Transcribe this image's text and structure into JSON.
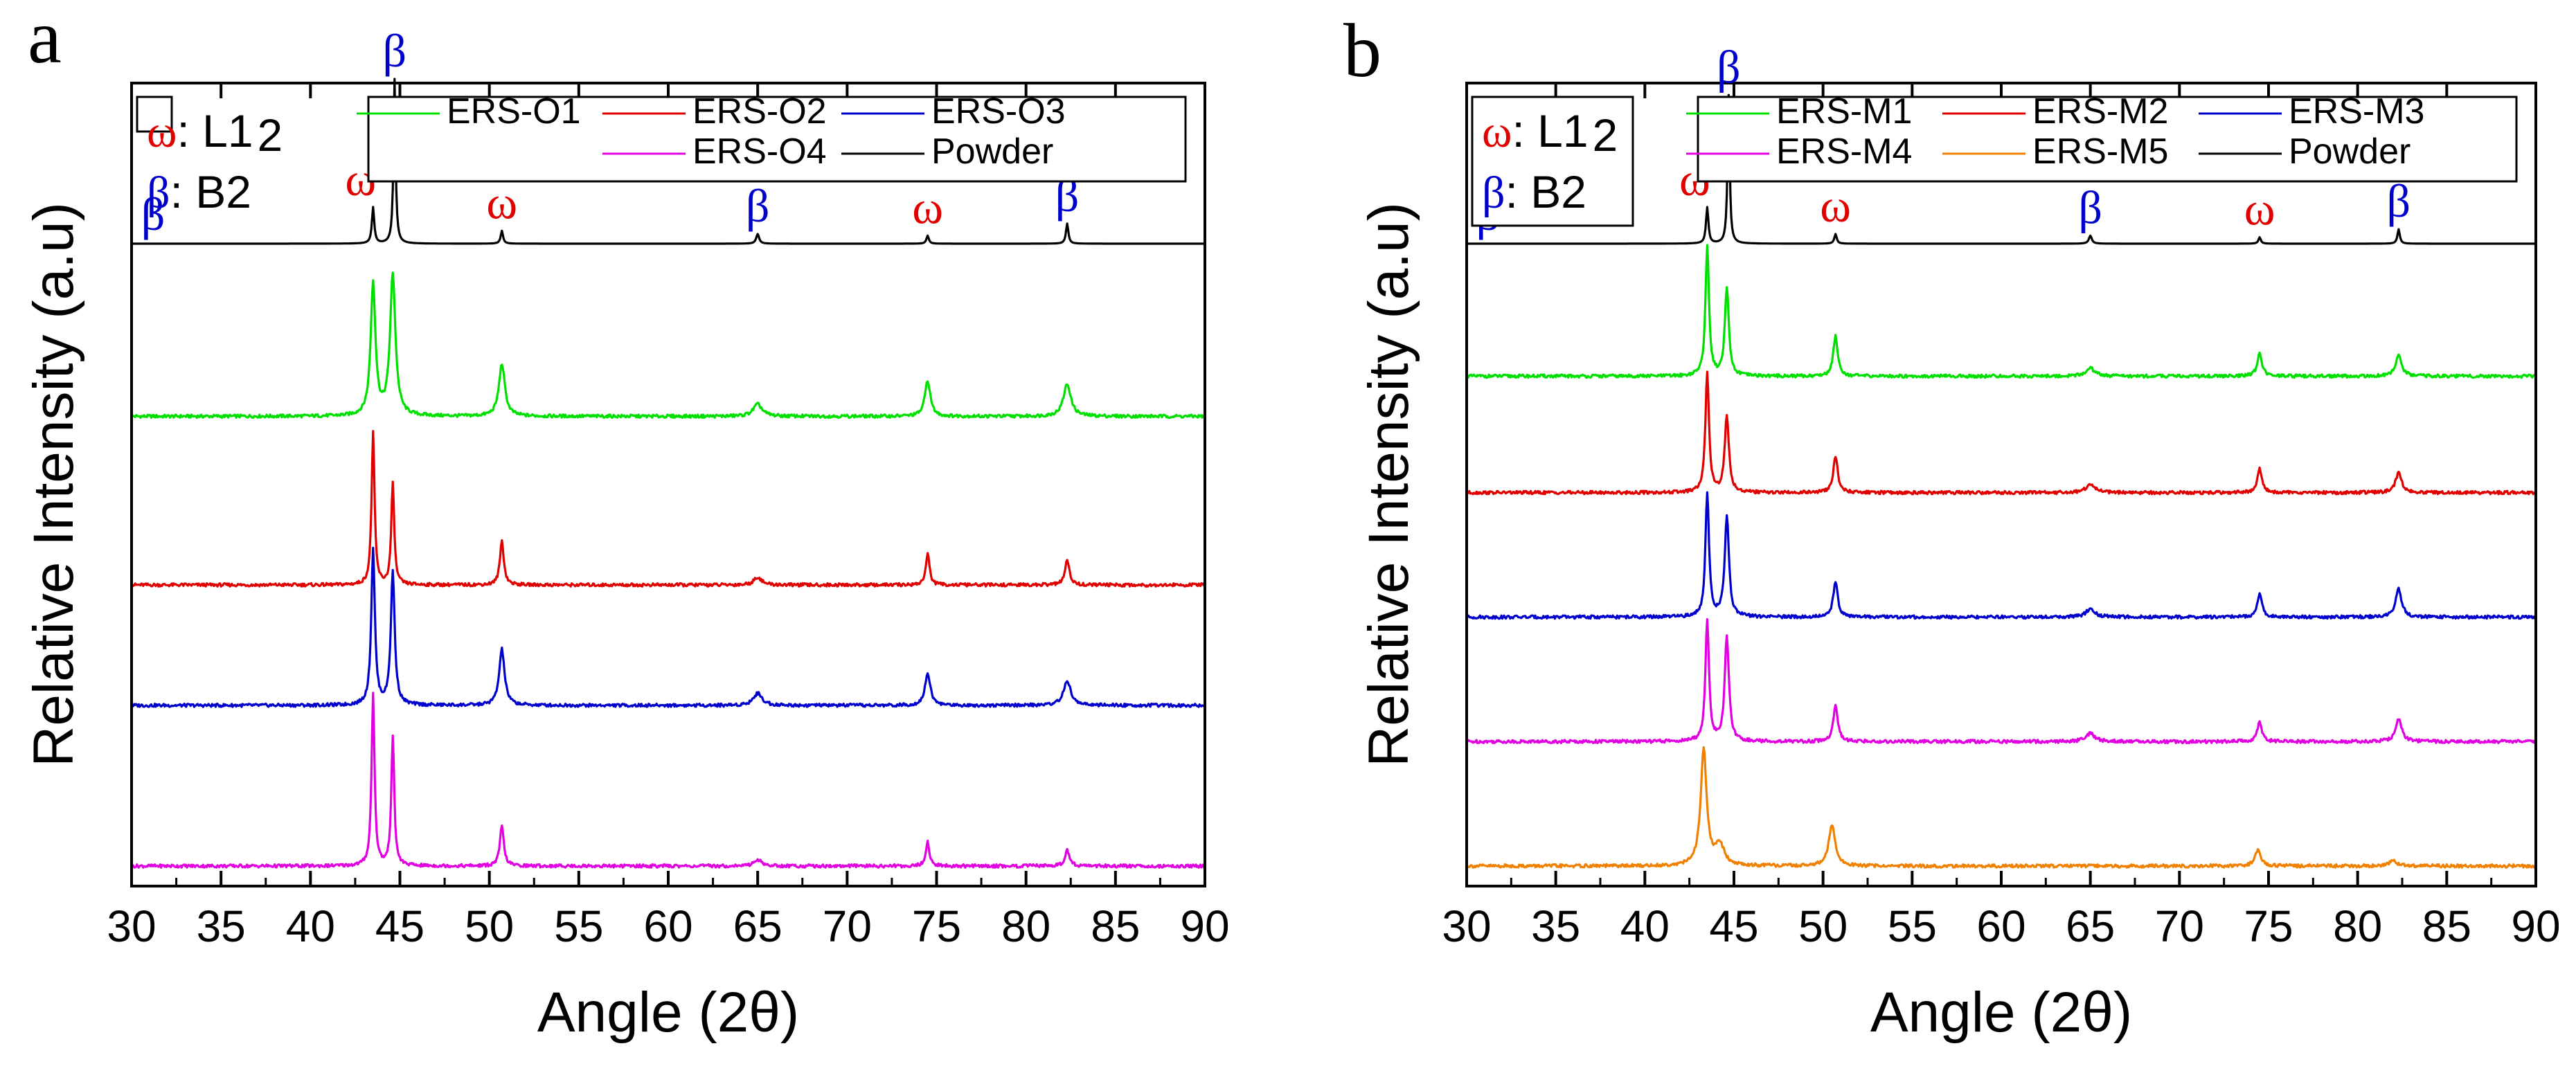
{
  "chart_data": [
    {
      "type": "line",
      "panel_label": "a",
      "xlabel": "Angle (2θ)",
      "ylabel": "Relative Intensity (a.u)",
      "xlim": [
        30,
        90
      ],
      "xticks": [
        "30",
        "35",
        "40",
        "45",
        "50",
        "55",
        "60",
        "65",
        "70",
        "75",
        "80",
        "85",
        "90"
      ],
      "y_ticks_shown": false,
      "grid": false,
      "phase_key": [
        {
          "symbol": "ω",
          "text": ": L1",
          "sub": "2",
          "color": "#e00000"
        },
        {
          "symbol": "β",
          "text": ": B2",
          "color": "#0000cc"
        }
      ],
      "legend": {
        "placement": "top-right",
        "entries": [
          {
            "name": "ERS-O1",
            "color": "#00e000"
          },
          {
            "name": "ERS-O2",
            "color": "#e00000"
          },
          {
            "name": "ERS-O3",
            "color": "#0000cc"
          },
          {
            "name": "ERS-O4",
            "color": "#e000e0"
          },
          {
            "name": "Powder",
            "color": "#000000"
          }
        ]
      },
      "peak_annotations": [
        {
          "x": 31.2,
          "label": "β",
          "color": "#0000cc"
        },
        {
          "x": 43.5,
          "label": "ω",
          "color": "#e00000"
        },
        {
          "x": 44.7,
          "label": "β",
          "color": "#0000cc"
        },
        {
          "x": 50.7,
          "label": "ω",
          "color": "#e00000"
        },
        {
          "x": 65.0,
          "label": "β",
          "color": "#0000cc"
        },
        {
          "x": 74.5,
          "label": "ω",
          "color": "#e00000"
        },
        {
          "x": 82.3,
          "label": "β",
          "color": "#0000cc"
        }
      ],
      "series": [
        {
          "name": "Powder",
          "color": "#000000",
          "offset": 0.8,
          "peaks": [
            {
              "x": 43.5,
              "h": 0.045,
              "w": 0.08
            },
            {
              "x": 44.7,
              "h": 0.205,
              "w": 0.07
            },
            {
              "x": 50.7,
              "h": 0.016,
              "w": 0.08
            },
            {
              "x": 65.0,
              "h": 0.012,
              "w": 0.1
            },
            {
              "x": 74.5,
              "h": 0.01,
              "w": 0.08
            },
            {
              "x": 82.3,
              "h": 0.025,
              "w": 0.08
            }
          ]
        },
        {
          "name": "ERS-O1",
          "color": "#00e000",
          "offset": 0.585,
          "peaks": [
            {
              "x": 43.5,
              "h": 0.165,
              "w": 0.16
            },
            {
              "x": 44.6,
              "h": 0.175,
              "w": 0.18
            },
            {
              "x": 50.7,
              "h": 0.065,
              "w": 0.2
            },
            {
              "x": 65.0,
              "h": 0.015,
              "w": 0.3
            },
            {
              "x": 74.5,
              "h": 0.045,
              "w": 0.18
            },
            {
              "x": 82.3,
              "h": 0.04,
              "w": 0.25
            }
          ]
        },
        {
          "name": "ERS-O2",
          "color": "#e00000",
          "offset": 0.375,
          "peaks": [
            {
              "x": 43.5,
              "h": 0.19,
              "w": 0.1
            },
            {
              "x": 44.6,
              "h": 0.125,
              "w": 0.1
            },
            {
              "x": 50.7,
              "h": 0.055,
              "w": 0.13
            },
            {
              "x": 65.0,
              "h": 0.01,
              "w": 0.25
            },
            {
              "x": 74.5,
              "h": 0.04,
              "w": 0.12
            },
            {
              "x": 82.3,
              "h": 0.03,
              "w": 0.15
            }
          ]
        },
        {
          "name": "ERS-O3",
          "color": "#0000cc",
          "offset": 0.225,
          "peaks": [
            {
              "x": 43.5,
              "h": 0.195,
              "w": 0.12
            },
            {
              "x": 44.6,
              "h": 0.165,
              "w": 0.13
            },
            {
              "x": 50.7,
              "h": 0.07,
              "w": 0.18
            },
            {
              "x": 65.0,
              "h": 0.015,
              "w": 0.3
            },
            {
              "x": 74.5,
              "h": 0.04,
              "w": 0.18
            },
            {
              "x": 82.3,
              "h": 0.03,
              "w": 0.25
            }
          ]
        },
        {
          "name": "ERS-O4",
          "color": "#e000e0",
          "offset": 0.025,
          "peaks": [
            {
              "x": 43.5,
              "h": 0.215,
              "w": 0.1
            },
            {
              "x": 44.6,
              "h": 0.16,
              "w": 0.1
            },
            {
              "x": 50.7,
              "h": 0.05,
              "w": 0.13
            },
            {
              "x": 65.0,
              "h": 0.008,
              "w": 0.25
            },
            {
              "x": 74.5,
              "h": 0.03,
              "w": 0.12
            },
            {
              "x": 82.3,
              "h": 0.02,
              "w": 0.15
            }
          ]
        }
      ]
    },
    {
      "type": "line",
      "panel_label": "b",
      "xlabel": "Angle (2θ)",
      "ylabel": "Relative Intensity (a.u)",
      "xlim": [
        30,
        90
      ],
      "xticks": [
        "30",
        "35",
        "40",
        "45",
        "50",
        "55",
        "60",
        "65",
        "70",
        "75",
        "80",
        "85",
        "90"
      ],
      "y_ticks_shown": false,
      "grid": false,
      "phase_key": [
        {
          "symbol": "ω",
          "text": ": L1",
          "sub": "2",
          "color": "#e00000"
        },
        {
          "symbol": "β",
          "text": ": B2",
          "color": "#0000cc"
        }
      ],
      "legend": {
        "placement": "top-right",
        "entries": [
          {
            "name": "ERS-M1",
            "color": "#00e000"
          },
          {
            "name": "ERS-M2",
            "color": "#e00000"
          },
          {
            "name": "ERS-M3",
            "color": "#0000cc"
          },
          {
            "name": "ERS-M4",
            "color": "#e000e0"
          },
          {
            "name": "ERS-M5",
            "color": "#f08000"
          },
          {
            "name": "Powder",
            "color": "#000000"
          }
        ]
      },
      "peak_annotations": [
        {
          "x": 31.2,
          "label": "β",
          "color": "#0000cc"
        },
        {
          "x": 43.5,
          "label": "ω",
          "color": "#e00000"
        },
        {
          "x": 44.7,
          "label": "β",
          "color": "#0000cc"
        },
        {
          "x": 50.7,
          "label": "ω",
          "color": "#e00000"
        },
        {
          "x": 65.0,
          "label": "β",
          "color": "#0000cc"
        },
        {
          "x": 74.5,
          "label": "ω",
          "color": "#e00000"
        },
        {
          "x": 82.3,
          "label": "β",
          "color": "#0000cc"
        }
      ],
      "series": [
        {
          "name": "Powder",
          "color": "#000000",
          "offset": 0.8,
          "peaks": [
            {
              "x": 43.5,
              "h": 0.045,
              "w": 0.08
            },
            {
              "x": 44.7,
              "h": 0.185,
              "w": 0.07
            },
            {
              "x": 50.7,
              "h": 0.012,
              "w": 0.08
            },
            {
              "x": 65.0,
              "h": 0.01,
              "w": 0.1
            },
            {
              "x": 74.5,
              "h": 0.008,
              "w": 0.08
            },
            {
              "x": 82.3,
              "h": 0.018,
              "w": 0.08
            }
          ]
        },
        {
          "name": "ERS-M1",
          "color": "#00e000",
          "offset": 0.635,
          "peaks": [
            {
              "x": 43.5,
              "h": 0.16,
              "w": 0.12
            },
            {
              "x": 44.6,
              "h": 0.11,
              "w": 0.13
            },
            {
              "x": 50.7,
              "h": 0.05,
              "w": 0.15
            },
            {
              "x": 65.0,
              "h": 0.01,
              "w": 0.3
            },
            {
              "x": 74.5,
              "h": 0.03,
              "w": 0.15
            },
            {
              "x": 82.3,
              "h": 0.025,
              "w": 0.2
            }
          ]
        },
        {
          "name": "ERS-M2",
          "color": "#e00000",
          "offset": 0.49,
          "peaks": [
            {
              "x": 43.5,
              "h": 0.15,
              "w": 0.12
            },
            {
              "x": 44.6,
              "h": 0.095,
              "w": 0.14
            },
            {
              "x": 50.7,
              "h": 0.045,
              "w": 0.15
            },
            {
              "x": 65.0,
              "h": 0.01,
              "w": 0.3
            },
            {
              "x": 74.5,
              "h": 0.03,
              "w": 0.15
            },
            {
              "x": 82.3,
              "h": 0.025,
              "w": 0.2
            }
          ]
        },
        {
          "name": "ERS-M3",
          "color": "#0000cc",
          "offset": 0.335,
          "peaks": [
            {
              "x": 43.5,
              "h": 0.155,
              "w": 0.12
            },
            {
              "x": 44.6,
              "h": 0.125,
              "w": 0.14
            },
            {
              "x": 50.7,
              "h": 0.045,
              "w": 0.15
            },
            {
              "x": 65.0,
              "h": 0.01,
              "w": 0.3
            },
            {
              "x": 74.5,
              "h": 0.03,
              "w": 0.15
            },
            {
              "x": 82.3,
              "h": 0.035,
              "w": 0.2
            }
          ]
        },
        {
          "name": "ERS-M4",
          "color": "#e000e0",
          "offset": 0.18,
          "peaks": [
            {
              "x": 43.5,
              "h": 0.15,
              "w": 0.12
            },
            {
              "x": 44.6,
              "h": 0.13,
              "w": 0.14
            },
            {
              "x": 50.7,
              "h": 0.045,
              "w": 0.15
            },
            {
              "x": 65.0,
              "h": 0.01,
              "w": 0.3
            },
            {
              "x": 74.5,
              "h": 0.025,
              "w": 0.15
            },
            {
              "x": 82.3,
              "h": 0.028,
              "w": 0.2
            }
          ]
        },
        {
          "name": "ERS-M5",
          "color": "#f08000",
          "offset": 0.025,
          "peaks": [
            {
              "x": 43.3,
              "h": 0.145,
              "w": 0.2
            },
            {
              "x": 44.2,
              "h": 0.025,
              "w": 0.3
            },
            {
              "x": 50.5,
              "h": 0.05,
              "w": 0.22
            },
            {
              "x": 74.4,
              "h": 0.02,
              "w": 0.2
            },
            {
              "x": 82.0,
              "h": 0.006,
              "w": 0.3
            }
          ]
        }
      ]
    }
  ]
}
